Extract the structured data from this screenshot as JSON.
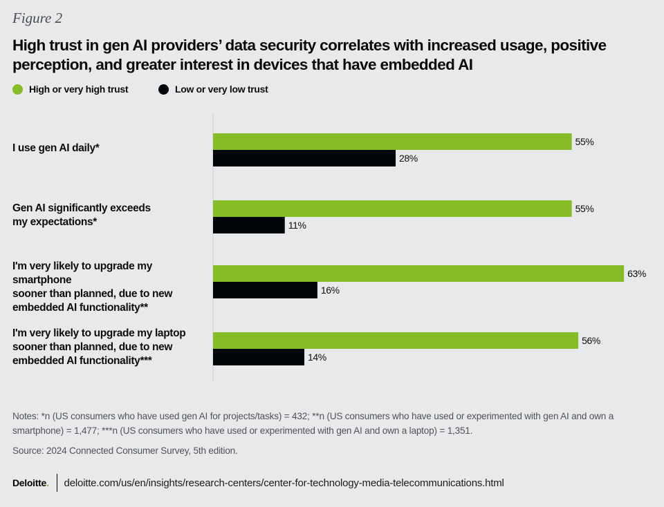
{
  "figure_label": "Figure 2",
  "title": "High trust in gen AI providers’ data security correlates with increased usage, positive perception, and greater interest in devices that have embedded AI",
  "colors": {
    "high": "#86bc25",
    "low": "#030608",
    "background": "#e8e9eb",
    "axis": "#cdd0d3"
  },
  "chart_data": {
    "type": "bar",
    "orientation": "horizontal",
    "title": "High trust in gen AI providers’ data security correlates with increased usage, positive perception, and greater interest in devices that have embedded AI",
    "categories": [
      "I use gen AI daily*",
      "Gen AI significantly exceeds my expectations*",
      "I'm very likely to upgrade my smartphone sooner than planned, due to new embedded AI functionality**",
      "I'm very likely to upgrade my laptop sooner than planned, due to new embedded AI functionality***"
    ],
    "category_lines": [
      [
        "I use gen AI daily*"
      ],
      [
        "Gen AI significantly exceeds",
        "my expectations*"
      ],
      [
        "I'm very likely to upgrade my smartphone",
        "sooner than planned, due to new",
        "embedded AI functionality**"
      ],
      [
        "I'm very likely to upgrade my laptop",
        "sooner than planned, due to new",
        "embedded AI functionality***"
      ]
    ],
    "series": [
      {
        "name": "High or very high trust",
        "values": [
          55,
          55,
          63,
          56
        ],
        "labels": [
          "55%",
          "55%",
          "63%",
          "56%"
        ],
        "color": "#86bc25"
      },
      {
        "name": "Low or very low trust",
        "values": [
          28,
          11,
          16,
          14
        ],
        "labels": [
          "28%",
          "11%",
          "16%",
          "14%"
        ],
        "color": "#030608"
      }
    ],
    "unit": "%",
    "xlim": [
      0,
      70
    ],
    "xlabel": "",
    "ylabel": "",
    "grid": false,
    "legend_position": "top-left"
  },
  "notes": "Notes: *n (US consumers who have used gen AI for projects/tasks) = 432; **n (US consumers who have used or experimented with gen AI and own a smartphone) = 1,477; ***n (US consumers who have used or experimented with gen AI and own a laptop) = 1,351.",
  "source": "Source: 2024 Connected Consumer Survey, 5th edition.",
  "footer": {
    "logo": "Deloitte",
    "logo_dot": ".",
    "url": "deloitte.com/us/en/insights/research-centers/center-for-technology-media-telecommunications.html"
  }
}
